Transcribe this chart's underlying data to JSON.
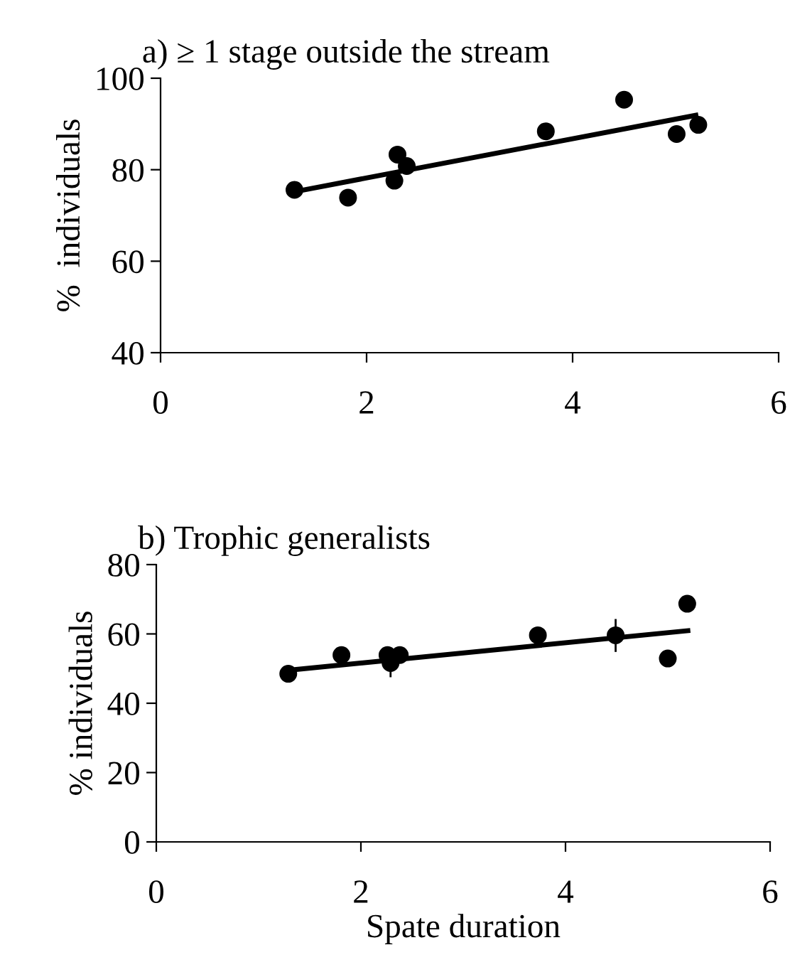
{
  "chart_data": [
    {
      "type": "scatter",
      "title": "a) ≥ 1 stage outside the stream",
      "ylabel": "%  individuals",
      "xlim": [
        0,
        6
      ],
      "xticks": [
        0,
        2,
        4,
        6
      ],
      "ylim": [
        40,
        100
      ],
      "yticks": [
        40,
        60,
        80,
        100
      ],
      "grid": false,
      "legend": false,
      "series": [
        {
          "marker": "circle",
          "color": "#000000",
          "x": [
            1.3,
            1.82,
            2.27,
            2.3,
            2.39,
            3.74,
            4.5,
            5.01,
            5.22
          ],
          "values": [
            75.6,
            73.9,
            77.6,
            83.3,
            80.8,
            88.4,
            95.3,
            87.8,
            89.8
          ]
        },
        {
          "type": "line",
          "color": "#000000",
          "x": [
            1.3,
            5.22
          ],
          "values": [
            75.2,
            92.0
          ]
        }
      ]
    },
    {
      "type": "scatter",
      "title": "b) Trophic generalists",
      "xlabel": "Spate duration",
      "ylabel": "% individuals",
      "xlim": [
        0,
        6
      ],
      "xticks": [
        0,
        2,
        4,
        6
      ],
      "ylim": [
        0,
        80
      ],
      "yticks": [
        0,
        20,
        40,
        60,
        80
      ],
      "grid": false,
      "legend": false,
      "series": [
        {
          "marker": "circle",
          "color": "#000000",
          "x": [
            1.29,
            1.81,
            2.26,
            2.29,
            2.38,
            3.73,
            4.49,
            5.0,
            5.19
          ],
          "values": [
            48.5,
            53.9,
            53.9,
            51.6,
            53.9,
            59.6,
            59.6,
            52.9,
            68.7
          ],
          "errors": [
            null,
            null,
            null,
            [
              47.5,
              51.6
            ],
            null,
            null,
            [
              54.8,
              64.3
            ],
            null,
            null
          ]
        },
        {
          "type": "line",
          "color": "#000000",
          "x": [
            1.35,
            5.22
          ],
          "values": [
            49.7,
            61.0
          ]
        }
      ]
    }
  ]
}
